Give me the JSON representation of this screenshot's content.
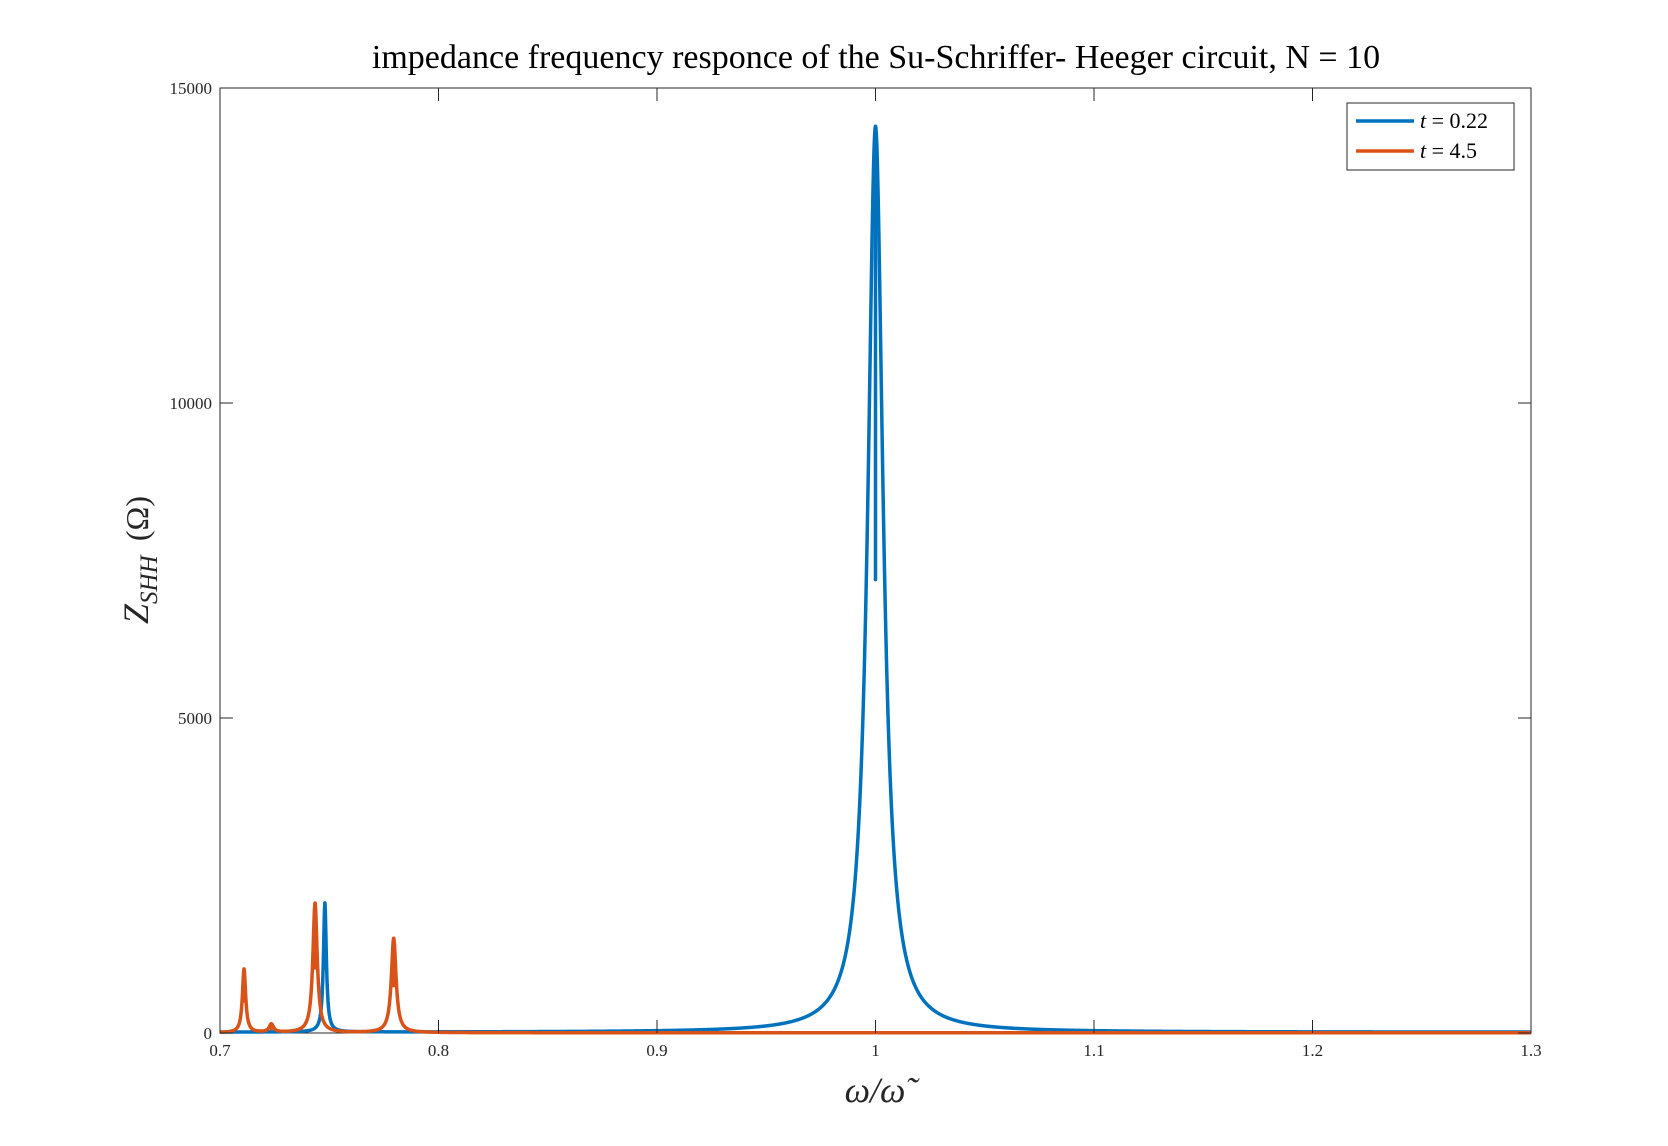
{
  "chart_data": {
    "type": "line",
    "title": "impedance frequency responce of the Su-Schriffer- Heeger circuit, N = 10",
    "xlabel": "ω/ω̃",
    "ylabel": {
      "main": "Z",
      "subscript": "SHH",
      "unit": "(Ω)"
    },
    "xlim": [
      0.7,
      1.3
    ],
    "ylim": [
      0,
      15000
    ],
    "xticks": [
      0.7,
      0.8,
      0.9,
      1.0,
      1.1,
      1.2,
      1.3
    ],
    "xtick_labels": [
      "0.7",
      "0.8",
      "0.9",
      "1",
      "1.1",
      "1.2",
      "1.3"
    ],
    "yticks": [
      0,
      5000,
      10000,
      15000
    ],
    "ytick_labels": [
      "0",
      "5000",
      "10000",
      "15000"
    ],
    "grid": false,
    "legend_position": "top-right",
    "series": [
      {
        "name": "t = 0.22",
        "legend_var": "t",
        "legend_value": "0.22",
        "color": "#0072BD",
        "baseline": 12,
        "peaks": [
          {
            "x": 0.748,
            "height": 2050,
            "width": 0.0008
          },
          {
            "x": 1.0,
            "height": 14380,
            "width": 0.0042
          }
        ]
      },
      {
        "name": "t = 4.5",
        "legend_var": "t",
        "legend_value": "4.5",
        "color": "#D95319",
        "baseline": 4,
        "peaks": [
          {
            "x": 0.711,
            "height": 1010,
            "width": 0.0009
          },
          {
            "x": 0.7235,
            "height": 130,
            "width": 0.0012
          },
          {
            "x": 0.7435,
            "height": 2060,
            "width": 0.0012
          },
          {
            "x": 0.7795,
            "height": 1500,
            "width": 0.0013
          }
        ]
      }
    ]
  }
}
